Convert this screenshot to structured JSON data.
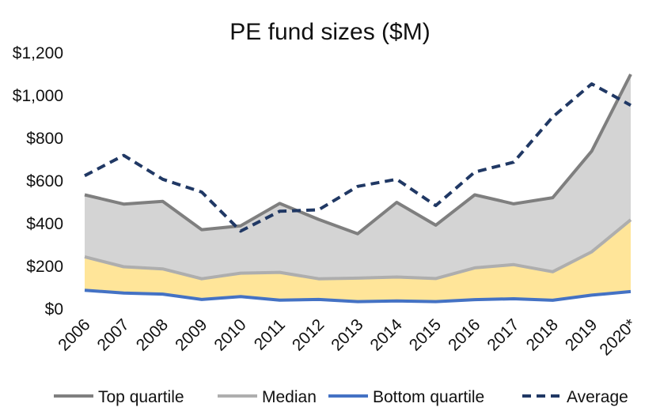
{
  "chart_data": {
    "type": "area",
    "title": "PE fund sizes ($M)",
    "xlabel": "",
    "ylabel": "",
    "categories": [
      "2006",
      "2007",
      "2008",
      "2009",
      "2010",
      "2011",
      "2012",
      "2013",
      "2014",
      "2015",
      "2016",
      "2017",
      "2018",
      "2019",
      "2020*"
    ],
    "ylim": [
      0,
      1200
    ],
    "yticks": [
      0,
      200,
      400,
      600,
      800,
      1000,
      1200
    ],
    "ytick_labels": [
      "$0",
      "$200",
      "$400",
      "$600",
      "$800",
      "$1,000",
      "$1,200"
    ],
    "grid": false,
    "legend_position": "bottom",
    "series": [
      {
        "name": "Top quartile",
        "style": "solid-line",
        "color": "#7f7f7f",
        "fill": "#d4d4d4",
        "values": [
          535,
          492,
          505,
          372,
          390,
          495,
          420,
          353,
          500,
          393,
          535,
          493,
          522,
          740,
          1100
        ]
      },
      {
        "name": "Median",
        "style": "solid-line",
        "color": "#aeaeae",
        "fill": "#ffe599",
        "values": [
          245,
          198,
          188,
          142,
          168,
          172,
          142,
          145,
          150,
          143,
          193,
          208,
          175,
          268,
          418
        ]
      },
      {
        "name": "Bottom quartile",
        "style": "solid-line",
        "color": "#4472c4",
        "fill": "#ffffff",
        "values": [
          88,
          75,
          70,
          45,
          58,
          42,
          45,
          35,
          38,
          35,
          44,
          48,
          41,
          65,
          82
        ]
      },
      {
        "name": "Average",
        "style": "dashed-line",
        "color": "#203864",
        "values": [
          625,
          720,
          608,
          548,
          365,
          458,
          465,
          575,
          608,
          485,
          642,
          688,
          900,
          1055,
          955
        ]
      }
    ]
  }
}
